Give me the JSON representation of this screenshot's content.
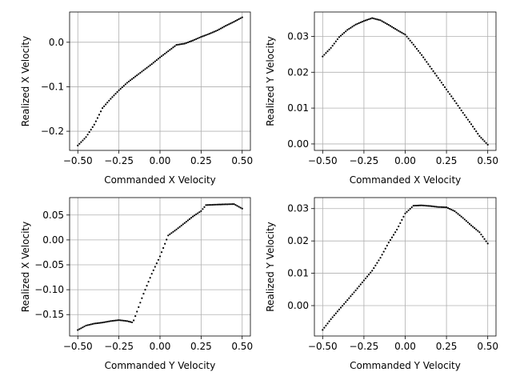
{
  "chart_data": [
    {
      "type": "scatter",
      "xlabel": "Commanded X Velocity",
      "ylabel": "Realized X Velocity",
      "xlim": [
        -0.55,
        0.55
      ],
      "ylim": [
        -0.243,
        0.068
      ],
      "xticks": [
        -0.5,
        -0.25,
        0.0,
        0.25,
        0.5
      ],
      "xtick_labels": [
        "−0.50",
        "−0.25",
        "0.00",
        "0.25",
        "0.50"
      ],
      "yticks": [
        -0.2,
        -0.1,
        0.0
      ],
      "ytick_labels": [
        "−0.2",
        "−0.1",
        "0.0"
      ],
      "grid": true,
      "marker_color": "#000000",
      "curve": [
        [
          -0.5,
          -0.232
        ],
        [
          -0.45,
          -0.213
        ],
        [
          -0.4,
          -0.185
        ],
        [
          -0.35,
          -0.148
        ],
        [
          -0.3,
          -0.127
        ],
        [
          -0.25,
          -0.108
        ],
        [
          -0.2,
          -0.091
        ],
        [
          -0.15,
          -0.077
        ],
        [
          -0.1,
          -0.063
        ],
        [
          -0.05,
          -0.049
        ],
        [
          0.0,
          -0.034
        ],
        [
          0.05,
          -0.02
        ],
        [
          0.1,
          -0.006
        ],
        [
          0.15,
          -0.003
        ],
        [
          0.2,
          0.004
        ],
        [
          0.25,
          0.012
        ],
        [
          0.3,
          0.019
        ],
        [
          0.35,
          0.027
        ],
        [
          0.4,
          0.037
        ],
        [
          0.45,
          0.046
        ],
        [
          0.5,
          0.056
        ]
      ],
      "n_points": 101
    },
    {
      "type": "scatter",
      "xlabel": "Commanded X Velocity",
      "ylabel": "Realized Y Velocity",
      "xlim": [
        -0.55,
        0.55
      ],
      "ylim": [
        -0.0018,
        0.0368
      ],
      "xticks": [
        -0.5,
        -0.25,
        0.0,
        0.25,
        0.5
      ],
      "xtick_labels": [
        "−0.50",
        "−0.25",
        "0.00",
        "0.25",
        "0.50"
      ],
      "yticks": [
        0.0,
        0.01,
        0.02,
        0.03
      ],
      "ytick_labels": [
        "0.00",
        "0.01",
        "0.02",
        "0.03"
      ],
      "grid": true,
      "marker_color": "#000000",
      "curve": [
        [
          -0.5,
          0.0244
        ],
        [
          -0.45,
          0.0268
        ],
        [
          -0.4,
          0.0298
        ],
        [
          -0.35,
          0.0318
        ],
        [
          -0.3,
          0.0333
        ],
        [
          -0.25,
          0.0343
        ],
        [
          -0.2,
          0.0351
        ],
        [
          -0.15,
          0.0345
        ],
        [
          -0.1,
          0.0332
        ],
        [
          -0.05,
          0.0318
        ],
        [
          0.0,
          0.0305
        ],
        [
          0.05,
          0.0277
        ],
        [
          0.1,
          0.0248
        ],
        [
          0.15,
          0.0216
        ],
        [
          0.2,
          0.0184
        ],
        [
          0.25,
          0.0152
        ],
        [
          0.3,
          0.012
        ],
        [
          0.35,
          0.0087
        ],
        [
          0.4,
          0.0055
        ],
        [
          0.45,
          0.0022
        ],
        [
          0.5,
          -0.0002
        ]
      ],
      "n_points": 101
    },
    {
      "type": "scatter",
      "xlabel": "Commanded Y Velocity",
      "ylabel": "Realized X Velocity",
      "xlim": [
        -0.55,
        0.55
      ],
      "ylim": [
        -0.193,
        0.085
      ],
      "xticks": [
        -0.5,
        -0.25,
        0.0,
        0.25,
        0.5
      ],
      "xtick_labels": [
        "−0.50",
        "−0.25",
        "0.00",
        "0.25",
        "0.50"
      ],
      "yticks": [
        -0.15,
        -0.1,
        -0.05,
        0.0,
        0.05
      ],
      "ytick_labels": [
        "−0.15",
        "−0.10",
        "−0.05",
        "0.00",
        "0.05"
      ],
      "grid": true,
      "marker_color": "#000000",
      "curve": [
        [
          -0.5,
          -0.181
        ],
        [
          -0.45,
          -0.172
        ],
        [
          -0.4,
          -0.168
        ],
        [
          -0.35,
          -0.166
        ],
        [
          -0.3,
          -0.163
        ],
        [
          -0.25,
          -0.161
        ],
        [
          -0.2,
          -0.163
        ],
        [
          -0.165,
          -0.166
        ],
        [
          -0.15,
          -0.153
        ],
        [
          -0.1,
          -0.108
        ],
        [
          -0.05,
          -0.068
        ],
        [
          0.0,
          -0.033
        ],
        [
          0.05,
          0.009
        ],
        [
          0.1,
          0.021
        ],
        [
          0.15,
          0.034
        ],
        [
          0.2,
          0.047
        ],
        [
          0.25,
          0.058
        ],
        [
          0.28,
          0.07
        ],
        [
          0.35,
          0.071
        ],
        [
          0.45,
          0.072
        ],
        [
          0.5,
          0.063
        ]
      ],
      "n_points": 101
    },
    {
      "type": "scatter",
      "xlabel": "Commanded Y Velocity",
      "ylabel": "Realized Y Velocity",
      "xlim": [
        -0.55,
        0.55
      ],
      "ylim": [
        -0.0094,
        0.0334
      ],
      "xticks": [
        -0.5,
        -0.25,
        0.0,
        0.25,
        0.5
      ],
      "xtick_labels": [
        "−0.50",
        "−0.25",
        "0.00",
        "0.25",
        "0.50"
      ],
      "yticks": [
        0.0,
        0.01,
        0.02,
        0.03
      ],
      "ytick_labels": [
        "0.00",
        "0.01",
        "0.02",
        "0.03"
      ],
      "grid": true,
      "marker_color": "#000000",
      "curve": [
        [
          -0.5,
          -0.0075
        ],
        [
          -0.45,
          -0.0042
        ],
        [
          -0.4,
          -0.0012
        ],
        [
          -0.35,
          0.0017
        ],
        [
          -0.3,
          0.0047
        ],
        [
          -0.25,
          0.0078
        ],
        [
          -0.2,
          0.0108
        ],
        [
          -0.15,
          0.0148
        ],
        [
          -0.1,
          0.0195
        ],
        [
          -0.05,
          0.0235
        ],
        [
          0.0,
          0.0285
        ],
        [
          0.05,
          0.0309
        ],
        [
          0.1,
          0.031
        ],
        [
          0.15,
          0.0308
        ],
        [
          0.2,
          0.0305
        ],
        [
          0.25,
          0.0304
        ],
        [
          0.3,
          0.0292
        ],
        [
          0.35,
          0.0271
        ],
        [
          0.4,
          0.0248
        ],
        [
          0.45,
          0.0227
        ],
        [
          0.5,
          0.0192
        ]
      ],
      "n_points": 101
    }
  ]
}
